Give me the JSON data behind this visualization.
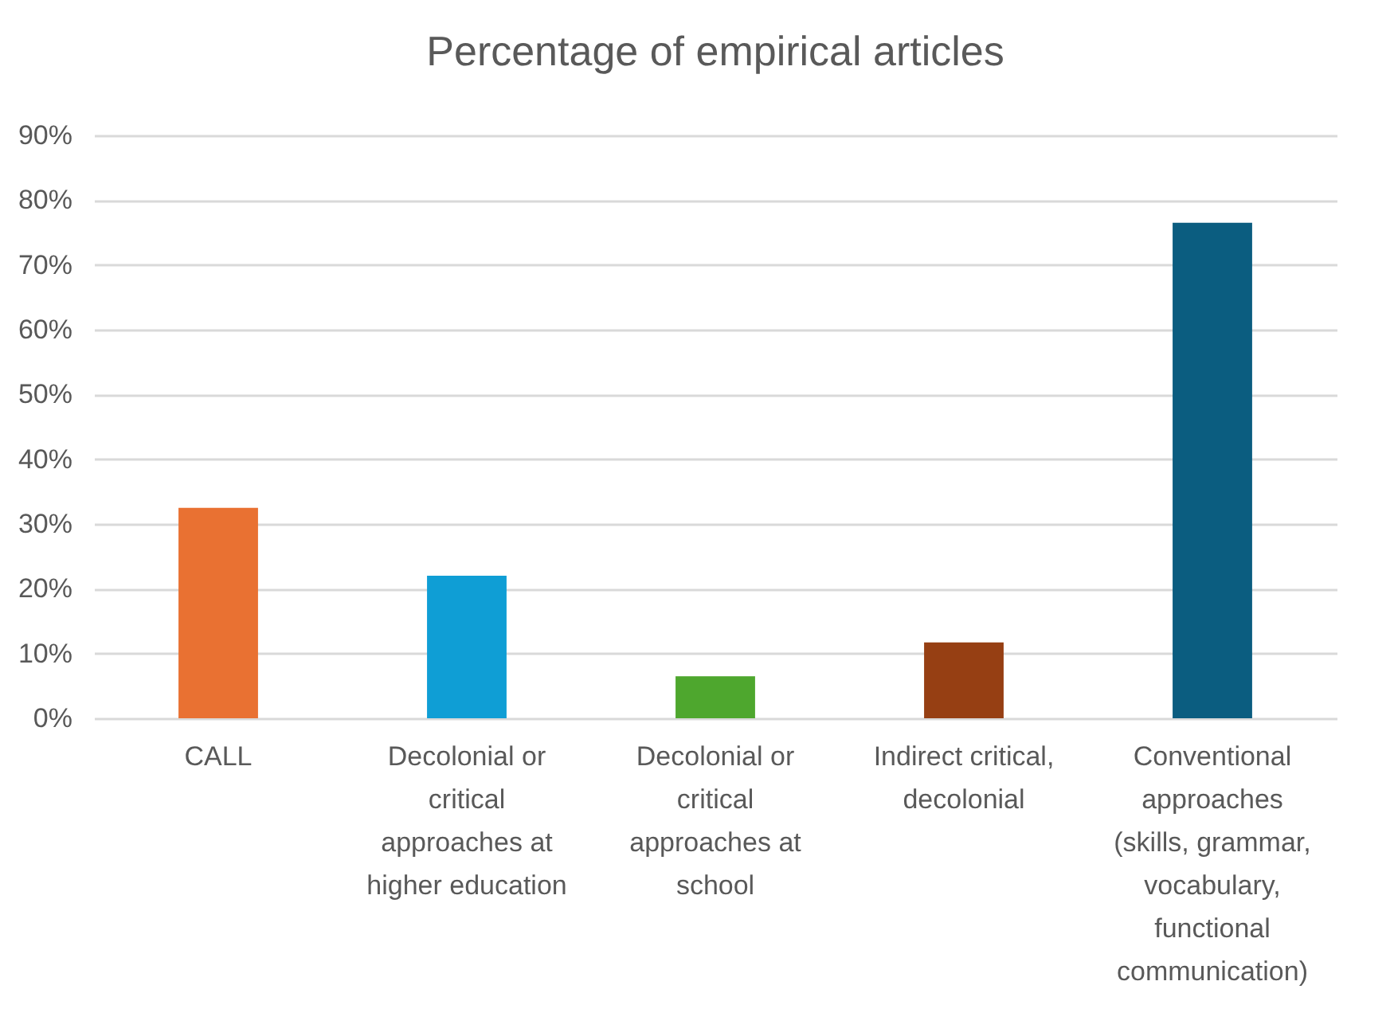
{
  "chart_data": {
    "type": "bar",
    "title": "Percentage of empirical articles",
    "categories": [
      "CALL",
      "Decolonial or critical approaches at higher education",
      "Decolonial or critical approaches at school",
      "Indirect critical, decolonial",
      "Conventional approaches (skills, grammar, vocabulary, functional communication)"
    ],
    "values": [
      32.5,
      22,
      6.5,
      11.7,
      76.5
    ],
    "colors": [
      "#e97132",
      "#0f9ed5",
      "#4ea72e",
      "#963f13",
      "#0b5d80"
    ],
    "ylim": [
      0,
      90
    ],
    "yticks": [
      {
        "value": 0,
        "label": "0%"
      },
      {
        "value": 10,
        "label": "10%"
      },
      {
        "value": 20,
        "label": "20%"
      },
      {
        "value": 30,
        "label": "30%"
      },
      {
        "value": 40,
        "label": "40%"
      },
      {
        "value": 50,
        "label": "50%"
      },
      {
        "value": 60,
        "label": "60%"
      },
      {
        "value": 70,
        "label": "70%"
      },
      {
        "value": 80,
        "label": "80%"
      },
      {
        "value": 90,
        "label": "90%"
      }
    ],
    "grid": "y"
  }
}
